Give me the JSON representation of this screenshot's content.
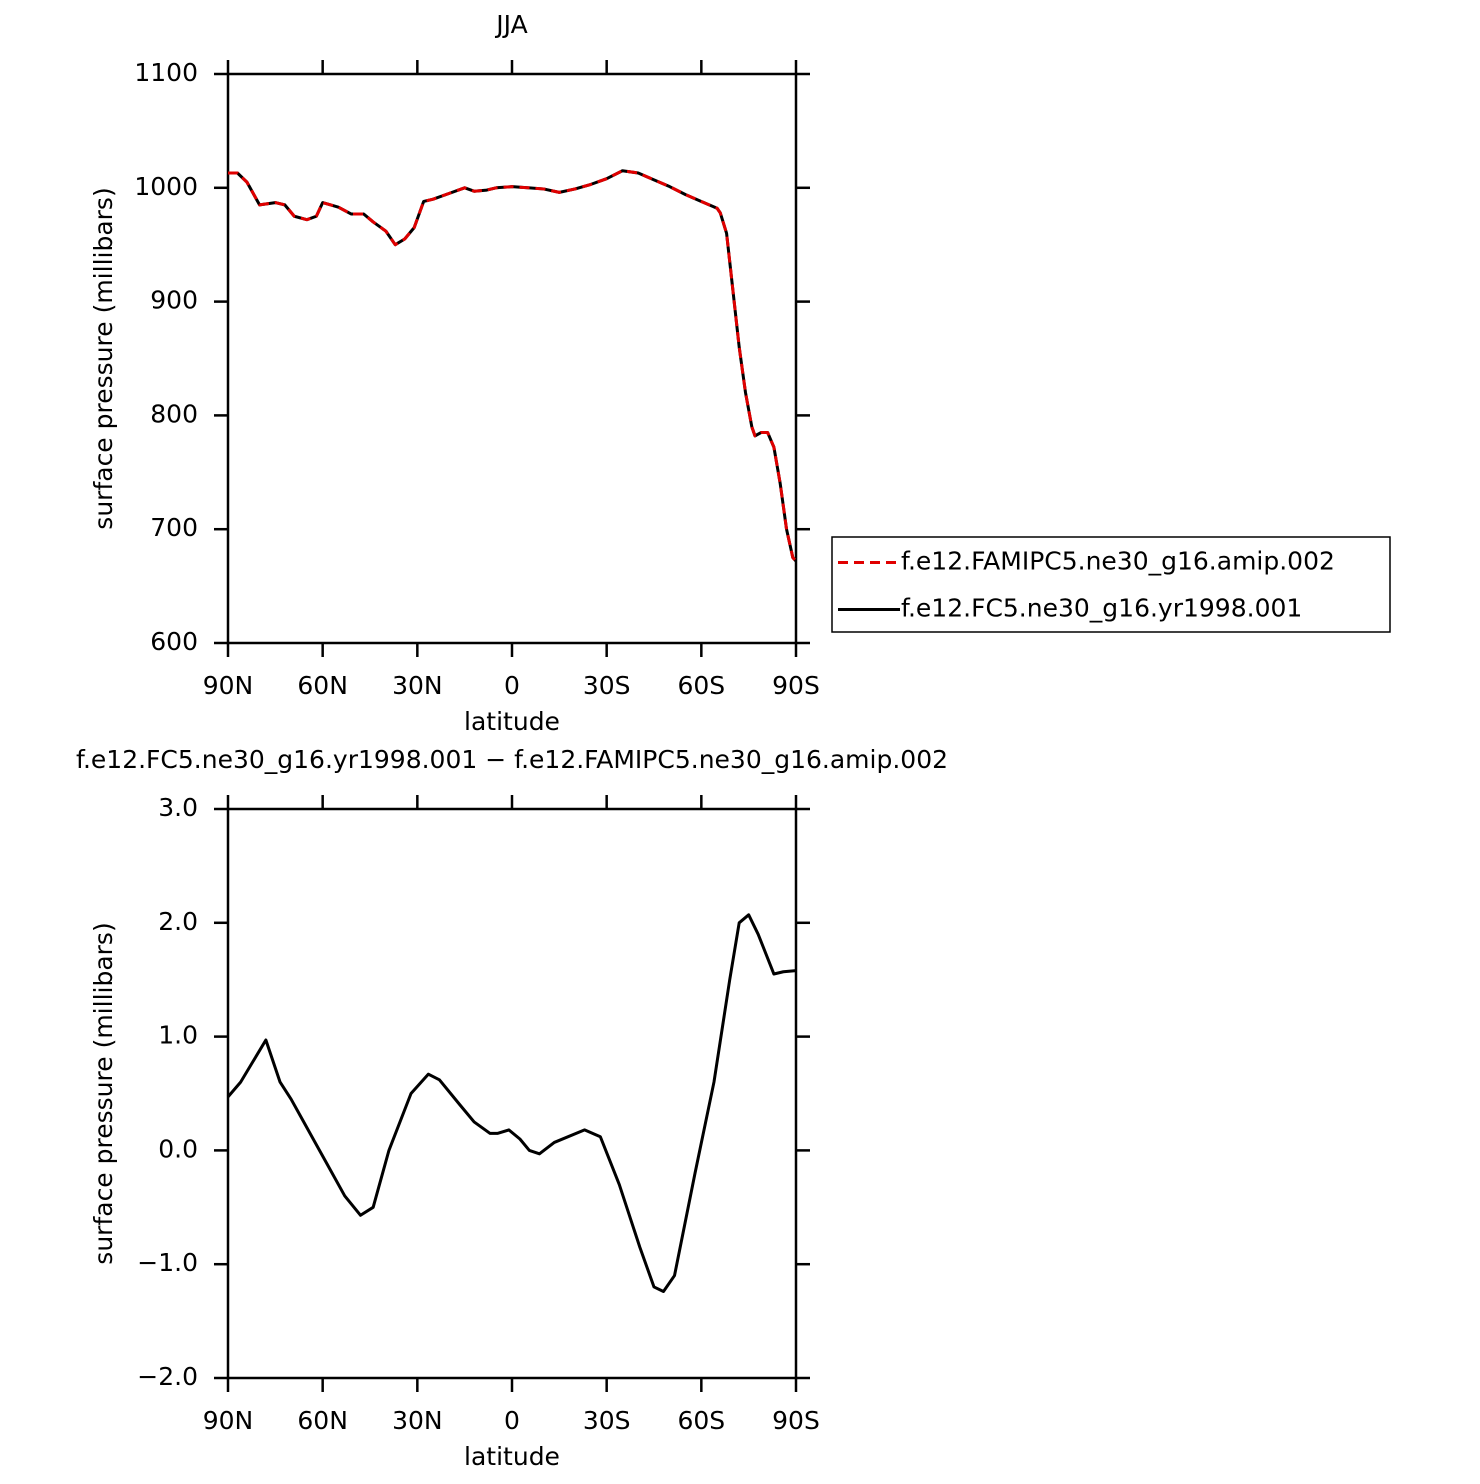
{
  "chart_data": [
    {
      "type": "line",
      "title": "JJA",
      "xlabel": "latitude",
      "ylabel": "surface pressure (millibars)",
      "x": [
        90,
        87,
        84,
        80,
        75,
        72,
        69,
        65,
        62,
        60,
        55,
        51,
        47,
        44,
        40,
        37,
        34,
        31,
        28,
        25,
        20,
        15,
        12,
        8,
        5,
        0,
        -5,
        -10,
        -15,
        -20,
        -25,
        -30,
        -35,
        -40,
        -45,
        -50,
        -55,
        -60,
        -65,
        -66,
        -68,
        -70,
        -72,
        -74,
        -76,
        -77,
        -79,
        -81,
        -83,
        -85,
        -87,
        -89,
        -90
      ],
      "series": [
        {
          "name": "f.e12.FAMIPC5.ne30_g16.amip.002",
          "color": "#e00000",
          "linestyle": "dashed",
          "values": [
            1013,
            1013,
            1005,
            985,
            987,
            985,
            975,
            972,
            975,
            987,
            983,
            977,
            977,
            970,
            962,
            950,
            955,
            965,
            988,
            990,
            995,
            1000,
            997,
            998,
            1000,
            1001,
            1000,
            999,
            996,
            999,
            1003,
            1008,
            1015,
            1013,
            1007,
            1001,
            994,
            988,
            982,
            978,
            960,
            910,
            860,
            820,
            790,
            782,
            785,
            785,
            772,
            740,
            700,
            675,
            672
          ]
        },
        {
          "name": "f.e12.FC5.ne30_g16.yr1998.001",
          "color": "#000000",
          "linestyle": "solid",
          "values": [
            1013,
            1013,
            1005,
            985,
            987,
            985,
            975,
            972,
            975,
            987,
            983,
            977,
            977,
            970,
            962,
            950,
            955,
            965,
            988,
            990,
            995,
            1000,
            997,
            998,
            1000,
            1001,
            1000,
            999,
            996,
            999,
            1003,
            1008,
            1015,
            1013,
            1007,
            1001,
            994,
            988,
            982,
            978,
            960,
            910,
            860,
            820,
            790,
            782,
            785,
            785,
            772,
            740,
            700,
            675,
            672
          ]
        }
      ],
      "xlim": [
        90,
        -90
      ],
      "xticks": [
        {
          "value": 90,
          "label": "90N"
        },
        {
          "value": 60,
          "label": "60N"
        },
        {
          "value": 30,
          "label": "30N"
        },
        0,
        {
          "value": -30,
          "label": "30S"
        },
        {
          "value": -60,
          "label": "60S"
        },
        {
          "value": -90,
          "label": "90S"
        }
      ],
      "ylim": [
        600,
        1100
      ],
      "yticks": [
        600,
        700,
        800,
        900,
        1000,
        1100
      ],
      "legend": "right"
    },
    {
      "type": "line",
      "title": "f.e12.FC5.ne30_g16.yr1998.001 − f.e12.FAMIPC5.ne30_g16.amip.002",
      "xlabel": "latitude",
      "ylabel": "surface pressure (millibars)",
      "x": [
        90,
        86,
        78,
        73.5,
        70,
        67,
        59,
        53,
        48,
        44,
        39,
        32,
        26.5,
        23,
        16.5,
        12,
        7,
        4.5,
        1,
        -2.5,
        -5.5,
        -8.7,
        -13.4,
        -23,
        -28,
        -34,
        -40.5,
        -45,
        -48,
        -51.5,
        -58,
        -64,
        -69,
        -72,
        -75,
        -78,
        -83,
        -86,
        -90
      ],
      "series": [
        {
          "name": "f.e12.FC5.ne30_g16.yr1998.001 − f.e12.FAMIPC5.ne30_g16.amip.002",
          "color": "#000000",
          "linestyle": "solid",
          "values": [
            0.47,
            0.6,
            0.97,
            0.6,
            0.45,
            0.3,
            -0.1,
            -0.4,
            -0.57,
            -0.5,
            0,
            0.5,
            0.67,
            0.62,
            0.4,
            0.25,
            0.15,
            0.15,
            0.18,
            0.1,
            0,
            -0.03,
            0.07,
            0.18,
            0.12,
            -0.3,
            -0.85,
            -1.2,
            -1.24,
            -1.1,
            -0.2,
            0.6,
            1.5,
            2.0,
            2.07,
            1.9,
            1.55,
            1.57,
            1.58
          ]
        }
      ],
      "xlim": [
        90,
        -90
      ],
      "xticks": [
        {
          "value": 90,
          "label": "90N"
        },
        {
          "value": 60,
          "label": "60N"
        },
        {
          "value": 30,
          "label": "30N"
        },
        0,
        {
          "value": -30,
          "label": "30S"
        },
        {
          "value": -60,
          "label": "60S"
        },
        {
          "value": -90,
          "label": "90S"
        }
      ],
      "ylim": [
        -2,
        3
      ],
      "yticks": [
        {
          "value": -2,
          "label": "−2.0"
        },
        {
          "value": -1,
          "label": "−1.0"
        },
        {
          "value": 0,
          "label": "0.0"
        },
        {
          "value": 1,
          "label": "1.0"
        },
        {
          "value": 2,
          "label": "2.0"
        },
        {
          "value": 3,
          "label": "3.0"
        }
      ]
    }
  ]
}
